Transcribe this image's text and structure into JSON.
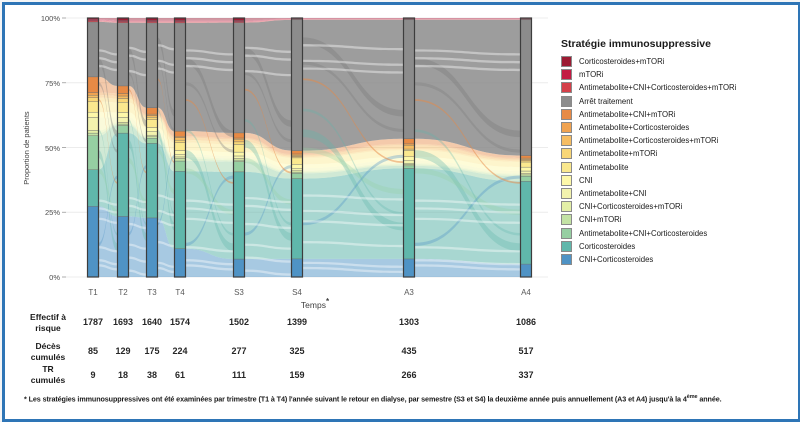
{
  "frame": {
    "border_color": "#2e75b6",
    "background": "#ffffff"
  },
  "chart_data": {
    "type": "area",
    "subtype": "alluvial-stacked-bars",
    "title": "",
    "legend_title": "Stratégie immunosuppressive",
    "ylabel": "Proportion de patients",
    "xlabel": "Temps",
    "xlabel_note": "*",
    "ylim": [
      0,
      100
    ],
    "grid": true,
    "legend_position": "right",
    "y_ticks": [
      "0%",
      "25%",
      "50%",
      "75%",
      "100%"
    ],
    "categories": [
      "T1",
      "T2",
      "T3",
      "T4",
      "S3",
      "S4",
      "A3",
      "A4"
    ],
    "series": [
      {
        "name": "CNI+Corticosteroides",
        "color": "#4f93c5",
        "values": [
          27,
          24,
          23,
          11,
          7,
          7,
          7,
          5
        ]
      },
      {
        "name": "Corticosteroides",
        "color": "#60b7ab",
        "values": [
          14,
          33,
          29,
          30,
          34,
          31,
          35,
          32
        ]
      },
      {
        "name": "Antimetabolite+CNI+Corticosteroides",
        "color": "#96cfa2",
        "values": [
          13,
          3,
          2,
          4,
          4,
          2,
          1,
          2
        ]
      },
      {
        "name": "CNI+mTORi",
        "color": "#c3e2a4",
        "values": [
          1,
          0.6,
          0.6,
          1,
          0.6,
          0.5,
          0.5,
          0.5
        ]
      },
      {
        "name": "CNI+Corticosteroides+mTORi",
        "color": "#e3efa7",
        "values": [
          1,
          0.6,
          0.6,
          0.6,
          0.6,
          0.5,
          0.5,
          0.5
        ]
      },
      {
        "name": "Antimetabolite+CNI",
        "color": "#f3f3ae",
        "values": [
          5,
          2,
          1.5,
          1,
          1,
          1,
          1,
          1
        ]
      },
      {
        "name": "CNI",
        "color": "#fdf8a9",
        "values": [
          2,
          2,
          1.5,
          1.5,
          1.5,
          1.5,
          1.5,
          1.5
        ]
      },
      {
        "name": "Antimetabolite",
        "color": "#fae88e",
        "values": [
          4,
          4,
          3,
          3,
          3,
          2.5,
          2.5,
          2
        ]
      },
      {
        "name": "Antimetabolite+mTORi",
        "color": "#f8d677",
        "values": [
          1.5,
          1.5,
          1,
          1,
          1,
          0.5,
          0.5,
          0.5
        ]
      },
      {
        "name": "Antimetabolite+Corticosteroides+mTORi",
        "color": "#f6bd62",
        "values": [
          1,
          1,
          0.6,
          1,
          1,
          0.5,
          1.5,
          0.5
        ]
      },
      {
        "name": "Antimetabolite+Corticosteroides",
        "color": "#f0a351",
        "values": [
          1,
          1,
          0.6,
          0.5,
          0.5,
          0.5,
          0.5,
          0.5
        ]
      },
      {
        "name": "Antimetabolite+CNI+mTORi",
        "color": "#e78a45",
        "values": [
          6,
          3,
          2.5,
          2,
          2,
          1.3,
          2,
          1
        ]
      },
      {
        "name": "Arrêt traitement",
        "color": "#8c8c8c",
        "values": [
          21,
          25,
          33,
          42,
          43,
          50.5,
          46,
          52.5
        ]
      },
      {
        "name": "Antimetabolite+CNI+Corticosteroides+mTORi",
        "color": "#d44049",
        "values": [
          0.5,
          0.5,
          0.5,
          0.5,
          0.4,
          0.2,
          0.2,
          0.2
        ]
      },
      {
        "name": "mTORi",
        "color": "#c31b44",
        "values": [
          0.5,
          0.4,
          0.4,
          0.4,
          0.4,
          0.3,
          0.3,
          0.3
        ]
      },
      {
        "name": "Corticosteroides+mTORi",
        "color": "#9c1b33",
        "values": [
          0.5,
          1,
          1,
          1,
          1,
          0.2,
          0.2,
          0.2
        ]
      }
    ]
  },
  "table": {
    "rows": [
      {
        "label": "Effectif à risque",
        "label_lines": [
          "Effectif à",
          "risque"
        ],
        "values": [
          "1787",
          "1693",
          "1640",
          "1574",
          "1502",
          "1399",
          "1303",
          "1086"
        ]
      },
      {
        "label": "Décès cumulés",
        "label_lines": [
          "Décès",
          "cumulés"
        ],
        "values": [
          "85",
          "129",
          "175",
          "224",
          "277",
          "325",
          "435",
          "517"
        ]
      },
      {
        "label": "TR cumulés",
        "label_lines": [
          "TR",
          "cumulés"
        ],
        "values": [
          "9",
          "18",
          "38",
          "61",
          "111",
          "159",
          "266",
          "337"
        ]
      }
    ]
  },
  "footnote": {
    "part1": "* Les stratégies immunosuppressives ont été examinées par trimestre (T1 à T4) l'année suivant le retour en dialyse, par semestre (S3 et S4) la deuxième année puis annuellement (A3 et A4) jusqu'à la 4",
    "sup": "ème",
    "part2": " année."
  }
}
